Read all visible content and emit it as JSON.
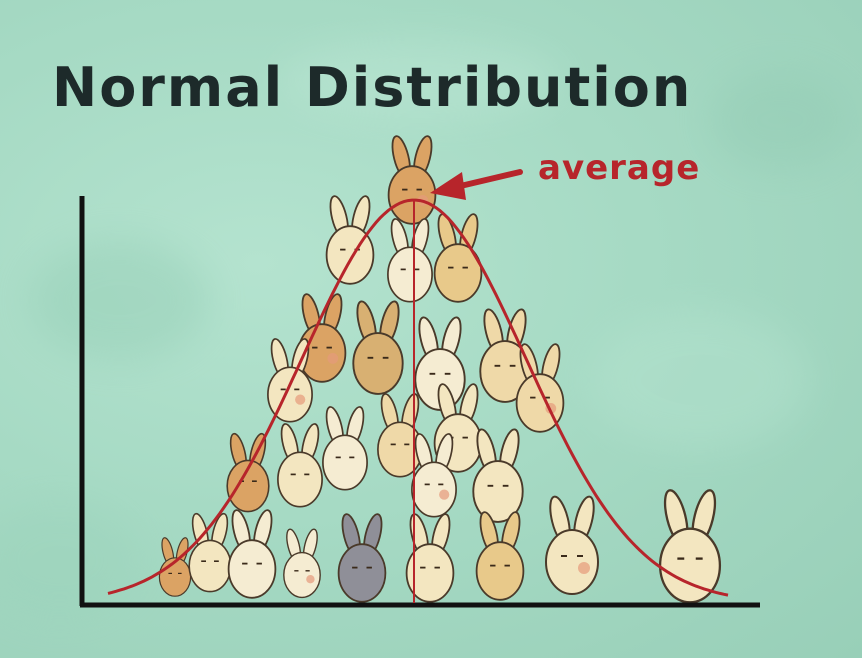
{
  "title": "Normal Distribution",
  "annotation": {
    "label": "average"
  },
  "colors": {
    "background": "#a8dcc6",
    "axes": "#111111",
    "curve": "#b7252b",
    "title": "#1d2a2a"
  },
  "illustration": {
    "subject": "rabbits",
    "icon": "bunny-icon"
  }
}
